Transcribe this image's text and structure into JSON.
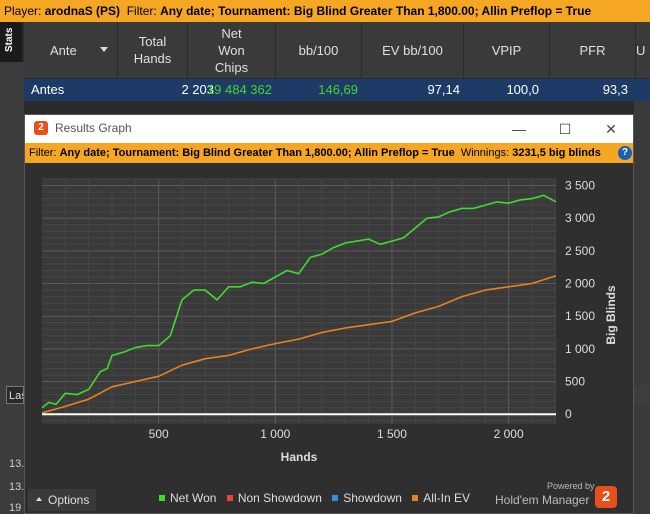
{
  "top_filter": {
    "prefix": "Player: ",
    "player": "arodnaS (PS)",
    "filter_label": "  Filter: ",
    "filter": "Any date; Tournament: Big Blind Greater Than 1,800.00; Allin Preflop = True"
  },
  "side_tab": "Stats",
  "table": {
    "headers": [
      {
        "label": "Ante",
        "sort_icon": "triangle-down-icon"
      },
      {
        "label": "Total Hands"
      },
      {
        "label": "Net Won Chips"
      },
      {
        "label": "bb/100"
      },
      {
        "label": "EV bb/100"
      },
      {
        "label": "VPIP"
      },
      {
        "label": "PFR"
      },
      {
        "label": "U"
      }
    ],
    "row": {
      "ante": "Antes",
      "total_hands": "2 203",
      "net_won_chips": "19 484 362",
      "bb100": "146,69",
      "ev_bb100": "97,14",
      "vpip": "100,0",
      "pfr": "93,3"
    },
    "colors": {
      "green": "#44d62c"
    }
  },
  "background_bits": {
    "las": "Las",
    "side_numbers": [
      "13.",
      "13.",
      "19"
    ]
  },
  "window": {
    "title": "Results Graph",
    "controls": {
      "minimize": "—",
      "maximize": "☐",
      "close": "✕"
    },
    "filter": {
      "label": "Filter: ",
      "value": "Any date; Tournament: Big Blind Greater Than 1,800.00; Allin Preflop = True",
      "winnings_label": "  Winnings: ",
      "winnings_value": "3231,5 big blinds"
    },
    "help_icon": "?"
  },
  "chart_data": {
    "type": "line",
    "xlabel": "Hands",
    "ylabel": "Big Blinds",
    "xlim": [
      0,
      2203
    ],
    "ylim": [
      -150,
      3600
    ],
    "xticks": [
      500,
      1000,
      1500,
      2000
    ],
    "xtick_labels": [
      "500",
      "1 000",
      "1 500",
      "2 000"
    ],
    "yticks": [
      0,
      500,
      1000,
      1500,
      2000,
      2500,
      3000,
      3500
    ],
    "ytick_labels": [
      "0",
      "500",
      "1 000",
      "1 500",
      "2 000",
      "2 500",
      "3 000",
      "3 500"
    ],
    "grid": true,
    "series": [
      {
        "name": "Net Won",
        "color": "#3ddc2f",
        "x": [
          0,
          30,
          60,
          100,
          150,
          200,
          250,
          280,
          300,
          350,
          400,
          450,
          500,
          550,
          600,
          650,
          700,
          750,
          800,
          850,
          900,
          950,
          1000,
          1050,
          1100,
          1150,
          1200,
          1250,
          1300,
          1350,
          1400,
          1450,
          1500,
          1550,
          1600,
          1650,
          1700,
          1750,
          1800,
          1850,
          1900,
          1950,
          2000,
          2050,
          2100,
          2150,
          2203
        ],
        "y": [
          100,
          180,
          150,
          320,
          300,
          380,
          650,
          700,
          900,
          950,
          1020,
          1050,
          1050,
          1200,
          1750,
          1900,
          1900,
          1750,
          1950,
          1950,
          2020,
          2000,
          2100,
          2200,
          2150,
          2400,
          2450,
          2550,
          2620,
          2650,
          2680,
          2600,
          2650,
          2700,
          2850,
          3000,
          3020,
          3100,
          3150,
          3150,
          3200,
          3250,
          3230,
          3280,
          3300,
          3350,
          3250
        ]
      },
      {
        "name": "Non Showdown",
        "color": "#e8443a",
        "x": [],
        "y": []
      },
      {
        "name": "Showdown",
        "color": "#2f8fe8",
        "x": [],
        "y": []
      },
      {
        "name": "All-In EV",
        "color": "#e8821e",
        "x": [
          0,
          100,
          200,
          300,
          400,
          500,
          600,
          700,
          800,
          900,
          1000,
          1100,
          1200,
          1300,
          1400,
          1500,
          1600,
          1700,
          1800,
          1900,
          2000,
          2100,
          2203
        ],
        "y": [
          20,
          120,
          230,
          420,
          500,
          580,
          750,
          850,
          900,
          1000,
          1080,
          1150,
          1250,
          1320,
          1370,
          1420,
          1550,
          1650,
          1800,
          1900,
          1950,
          2000,
          2120
        ]
      }
    ],
    "baseline_color": "#ffffff"
  },
  "footer": {
    "options_label": "Options",
    "options_icon": "caret-up-icon",
    "powered_by": "Powered by",
    "brand": "Hold'em Manager",
    "brand_logo": "2"
  }
}
